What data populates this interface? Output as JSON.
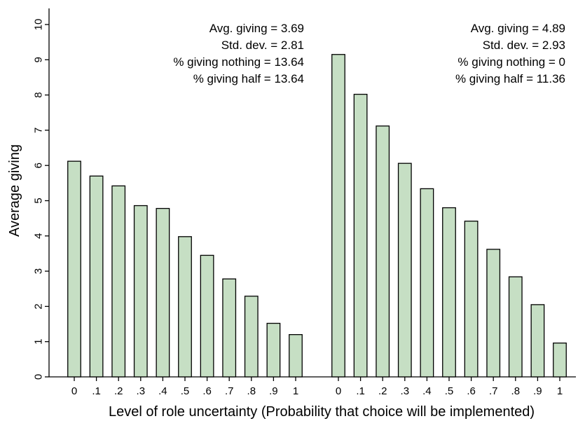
{
  "chart_data": {
    "type": "bar",
    "xlabel": "Level of role uncertainty (Probability that choice will be implemented)",
    "ylabel": "Average giving",
    "ylim": [
      0,
      10
    ],
    "yticks": [
      "0",
      "1",
      "2",
      "3",
      "4",
      "5",
      "6",
      "7",
      "8",
      "9",
      "10"
    ],
    "grid": false,
    "bar_color": "#c6dfc4",
    "groups": [
      {
        "categories": [
          "0",
          ".1",
          ".2",
          ".3",
          ".4",
          ".5",
          ".6",
          ".7",
          ".8",
          ".9",
          "1"
        ],
        "values": [
          6.12,
          5.7,
          5.42,
          4.86,
          4.78,
          3.98,
          3.45,
          2.78,
          2.29,
          1.52,
          1.2
        ],
        "stats": [
          "Avg. giving = 3.69",
          "Std. dev. = 2.81",
          "% giving nothing = 13.64",
          "% giving half = 13.64"
        ]
      },
      {
        "categories": [
          "0",
          ".1",
          ".2",
          ".3",
          ".4",
          ".5",
          ".6",
          ".7",
          ".8",
          ".9",
          "1"
        ],
        "values": [
          9.15,
          8.02,
          7.12,
          6.06,
          5.34,
          4.8,
          4.42,
          3.62,
          2.84,
          2.05,
          0.96
        ],
        "stats": [
          "Avg. giving = 4.89",
          "Std. dev. = 2.93",
          "% giving nothing = 0",
          "% giving half = 11.36"
        ]
      }
    ]
  }
}
